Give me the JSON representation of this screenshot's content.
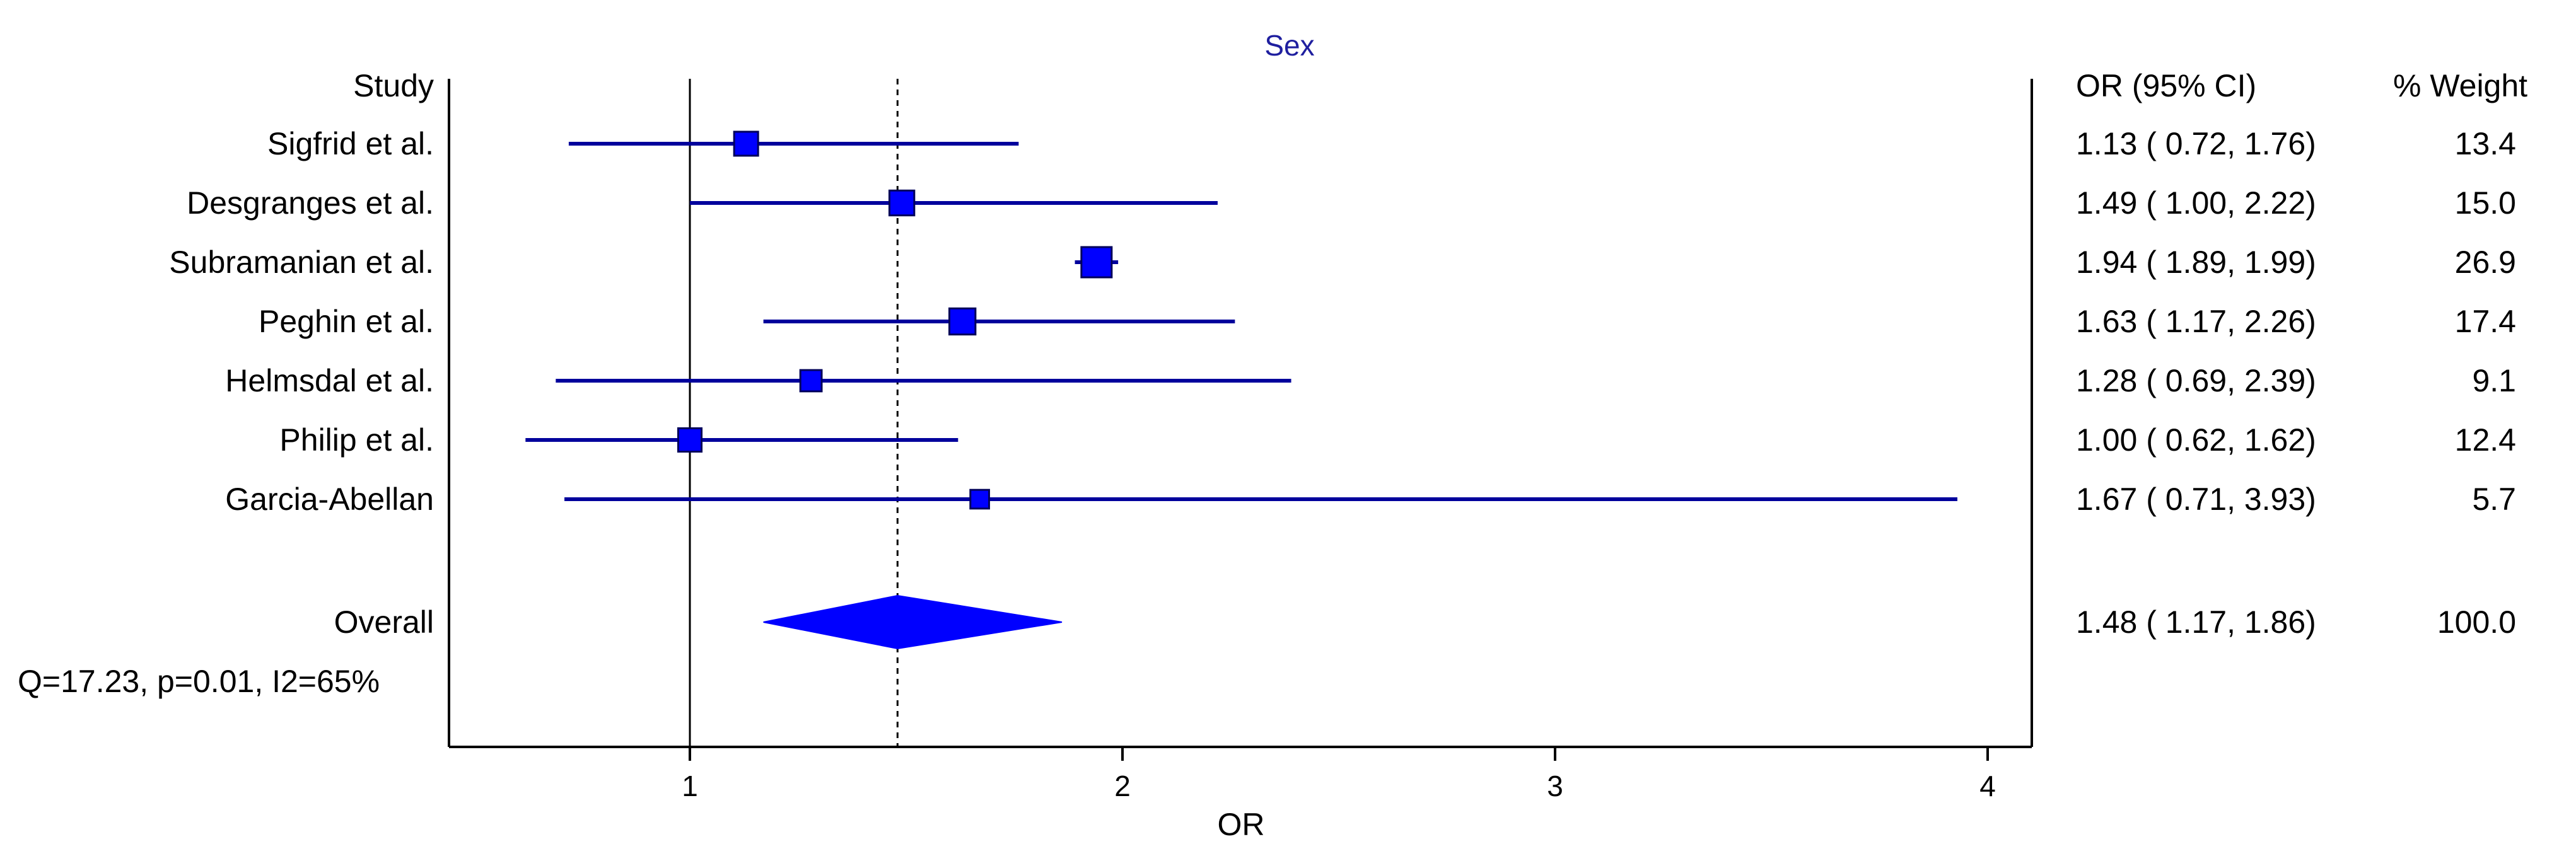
{
  "chart_data": {
    "type": "forest",
    "title": "Sex",
    "xlabel": "OR",
    "x_ticks": [
      1,
      2,
      3,
      4
    ],
    "xlim": [
      0.45,
      4.1
    ],
    "log_scale": false,
    "reference_line": 1,
    "summary_line": 1.48,
    "grid": false,
    "columns": {
      "study": "Study",
      "estimate": "OR (95% CI)",
      "weight": "% Weight"
    },
    "studies": [
      {
        "name": "Sigfrid et al.",
        "or": 1.13,
        "lo": 0.72,
        "hi": 1.76,
        "or_text": "1.13",
        "lo_text": "0.72",
        "hi_text": "1.76",
        "weight": "13.4"
      },
      {
        "name": "Desgranges et al.",
        "or": 1.49,
        "lo": 1.0,
        "hi": 2.22,
        "or_text": "1.49",
        "lo_text": "1.00",
        "hi_text": "2.22",
        "weight": "15.0"
      },
      {
        "name": "Subramanian et al.",
        "or": 1.94,
        "lo": 1.89,
        "hi": 1.99,
        "or_text": "1.94",
        "lo_text": "1.89",
        "hi_text": "1.99",
        "weight": "26.9"
      },
      {
        "name": "Peghin et al.",
        "or": 1.63,
        "lo": 1.17,
        "hi": 2.26,
        "or_text": "1.63",
        "lo_text": "1.17",
        "hi_text": "2.26",
        "weight": "17.4"
      },
      {
        "name": "Helmsdal et al.",
        "or": 1.28,
        "lo": 0.69,
        "hi": 2.39,
        "or_text": "1.28",
        "lo_text": "0.69",
        "hi_text": "2.39",
        "weight": "9.1"
      },
      {
        "name": "Philip et al.",
        "or": 1.0,
        "lo": 0.62,
        "hi": 1.62,
        "or_text": "1.00",
        "lo_text": "0.62",
        "hi_text": "1.62",
        "weight": "12.4"
      },
      {
        "name": "Garcia-Abellan",
        "or": 1.67,
        "lo": 0.71,
        "hi": 3.93,
        "or_text": "1.67",
        "lo_text": "0.71",
        "hi_text": "3.93",
        "weight": "5.7"
      }
    ],
    "overall": {
      "name": "Overall",
      "or": 1.48,
      "lo": 1.17,
      "hi": 1.86,
      "or_text": "1.48",
      "lo_text": "1.17",
      "hi_text": "1.86",
      "weight": "100.0"
    },
    "heterogeneity": "Q=17.23, p=0.01, I2=65%",
    "colors": {
      "marker": "#0000ff",
      "ci_line": "#00009c",
      "title": "#1f1f9f",
      "axis": "#000000"
    }
  }
}
